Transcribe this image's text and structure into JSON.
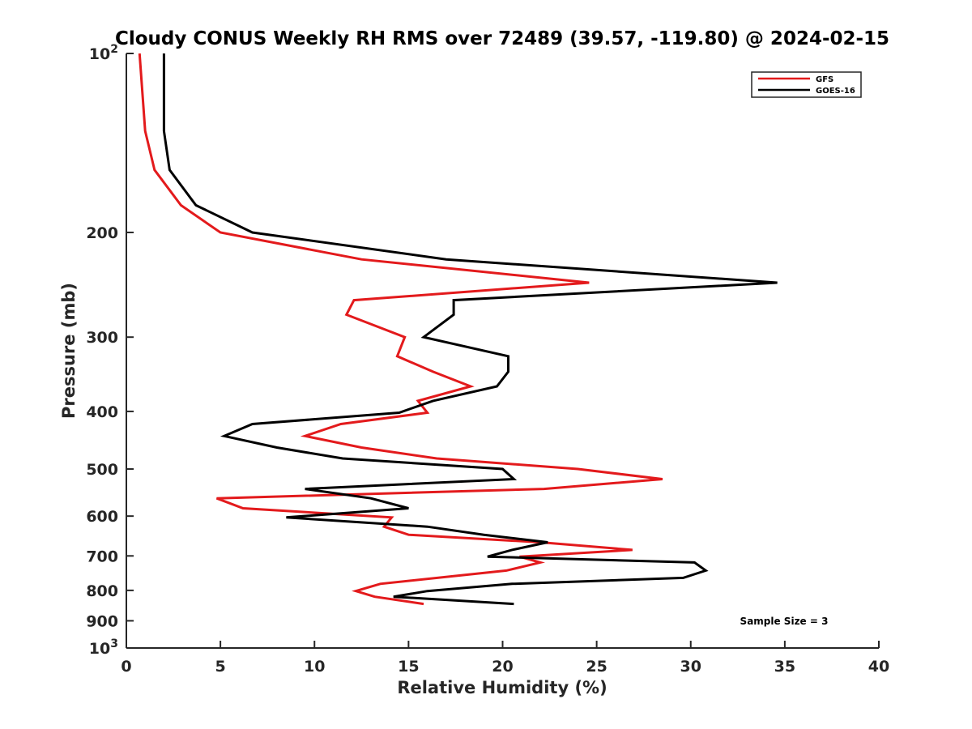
{
  "chart_data": {
    "type": "line",
    "title": "Cloudy CONUS Weekly RH RMS over 72489 (39.57, -119.80) @ 2024-02-15",
    "xlabel": "Relative Humidity (%)",
    "ylabel": "Pressure (mb)",
    "xlim": [
      0,
      40
    ],
    "ylim": [
      100,
      1000
    ],
    "y_scale": "log",
    "y_reversed": true,
    "x_ticks": [
      "0",
      "5",
      "10",
      "15",
      "20",
      "25",
      "30",
      "35",
      "40"
    ],
    "y_ticks": [
      {
        "value": 100,
        "base": "10",
        "exp": "2"
      },
      {
        "value": 200,
        "label": "200"
      },
      {
        "value": 300,
        "label": "300"
      },
      {
        "value": 400,
        "label": "400"
      },
      {
        "value": 500,
        "label": "500"
      },
      {
        "value": 600,
        "label": "600"
      },
      {
        "value": 700,
        "label": "700"
      },
      {
        "value": 800,
        "label": "800"
      },
      {
        "value": 900,
        "label": "900"
      },
      {
        "value": 1000,
        "base": "10",
        "exp": "3"
      }
    ],
    "grid": false,
    "legend_position": "top-right",
    "annotation": "Sample Size = 3",
    "series": [
      {
        "name": "GFS",
        "color": "#e31a1c",
        "points": [
          [
            0.7,
            100
          ],
          [
            1.0,
            135
          ],
          [
            1.5,
            157
          ],
          [
            2.9,
            180
          ],
          [
            5.0,
            200
          ],
          [
            12.5,
            222
          ],
          [
            24.6,
            243
          ],
          [
            12.1,
            260
          ],
          [
            11.7,
            275
          ],
          [
            14.8,
            300
          ],
          [
            14.4,
            323
          ],
          [
            16.3,
            343
          ],
          [
            18.3,
            363
          ],
          [
            15.5,
            384
          ],
          [
            16.0,
            402
          ],
          [
            11.4,
            420
          ],
          [
            9.5,
            440
          ],
          [
            12.5,
            460
          ],
          [
            16.5,
            480
          ],
          [
            24.0,
            500
          ],
          [
            28.5,
            520
          ],
          [
            22.2,
            540
          ],
          [
            4.8,
            560
          ],
          [
            6.2,
            582
          ],
          [
            14.1,
            603
          ],
          [
            13.7,
            625
          ],
          [
            15.0,
            645
          ],
          [
            22.0,
            664
          ],
          [
            26.9,
            684
          ],
          [
            20.9,
            702
          ],
          [
            22.0,
            718
          ],
          [
            20.2,
            741
          ],
          [
            13.5,
            780
          ],
          [
            12.2,
            802
          ],
          [
            13.2,
            820
          ],
          [
            15.8,
            843
          ]
        ]
      },
      {
        "name": "GOES-16",
        "color": "#000000",
        "points": [
          [
            2.0,
            100
          ],
          [
            2.0,
            135
          ],
          [
            2.3,
            157
          ],
          [
            3.7,
            180
          ],
          [
            6.7,
            200
          ],
          [
            17.0,
            222
          ],
          [
            34.6,
            243
          ],
          [
            17.4,
            260
          ],
          [
            17.4,
            275
          ],
          [
            15.8,
            300
          ],
          [
            20.3,
            323
          ],
          [
            20.3,
            343
          ],
          [
            19.7,
            363
          ],
          [
            16.3,
            384
          ],
          [
            14.5,
            402
          ],
          [
            6.7,
            420
          ],
          [
            5.2,
            440
          ],
          [
            8.0,
            460
          ],
          [
            11.5,
            480
          ],
          [
            20.0,
            500
          ],
          [
            20.6,
            520
          ],
          [
            9.5,
            540
          ],
          [
            13.0,
            560
          ],
          [
            15.0,
            582
          ],
          [
            8.5,
            603
          ],
          [
            16.0,
            625
          ],
          [
            19.0,
            645
          ],
          [
            22.4,
            664
          ],
          [
            20.5,
            684
          ],
          [
            19.2,
            702
          ],
          [
            30.2,
            718
          ],
          [
            30.8,
            741
          ],
          [
            29.6,
            762
          ],
          [
            20.5,
            780
          ],
          [
            16.0,
            802
          ],
          [
            14.2,
            820
          ],
          [
            20.6,
            843
          ]
        ]
      }
    ]
  }
}
